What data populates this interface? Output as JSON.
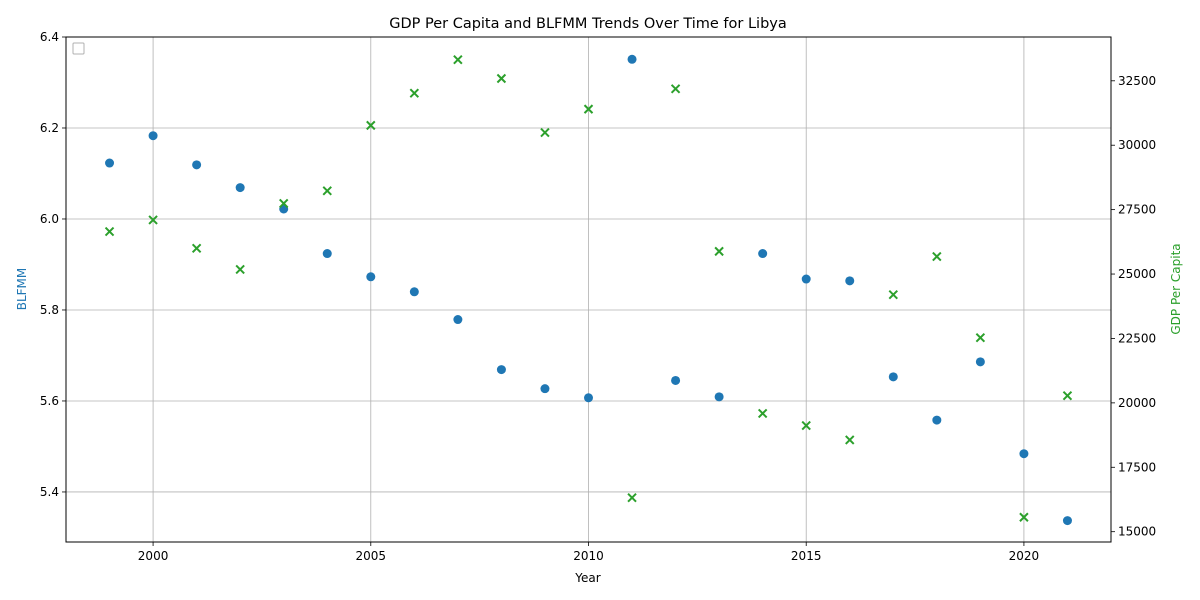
{
  "chart_data": {
    "type": "scatter",
    "title": "GDP Per Capita and BLFMM Trends Over Time for Libya",
    "xlabel": "Year",
    "ylabel_left": "BLFMM",
    "ylabel_right": "GDP Per Capita",
    "xlim": [
      1998,
      2022
    ],
    "ylim_left": [
      5.29,
      6.4
    ],
    "ylim_right": [
      14600,
      34200
    ],
    "x_ticks": [
      2000,
      2005,
      2010,
      2015,
      2020
    ],
    "y_left_ticks": [
      "5.4",
      "5.6",
      "5.8",
      "6.0",
      "6.2",
      "6.4"
    ],
    "y_right_ticks": [
      "15000",
      "17500",
      "20000",
      "22500",
      "25000",
      "27500",
      "30000",
      "32500"
    ],
    "grid": true,
    "legend": "top-left (empty)",
    "colors": {
      "blfmm": "#1f77b4",
      "gdp": "#2ca02c"
    },
    "x": [
      1999,
      2000,
      2001,
      2002,
      2003,
      2004,
      2005,
      2006,
      2007,
      2008,
      2009,
      2010,
      2011,
      2012,
      2013,
      2014,
      2015,
      2016,
      2017,
      2018,
      2019,
      2020,
      2021
    ],
    "series": [
      {
        "axis": "left",
        "marker": "circle",
        "values": [
          6.123,
          6.183,
          6.119,
          6.069,
          6.022,
          5.924,
          5.873,
          5.84,
          5.779,
          5.669,
          5.627,
          5.607,
          6.351,
          5.645,
          5.609,
          5.924,
          5.868,
          5.864,
          5.653,
          5.558,
          5.686,
          5.484,
          5.337
        ]
      },
      {
        "axis": "right",
        "marker": "x",
        "values": [
          26650,
          27100,
          26000,
          25180,
          27740,
          28230,
          30770,
          32020,
          33320,
          32590,
          30490,
          31400,
          16320,
          32190,
          25880,
          19590,
          19120,
          18560,
          24200,
          25680,
          22530,
          15560,
          20280
        ]
      }
    ]
  }
}
